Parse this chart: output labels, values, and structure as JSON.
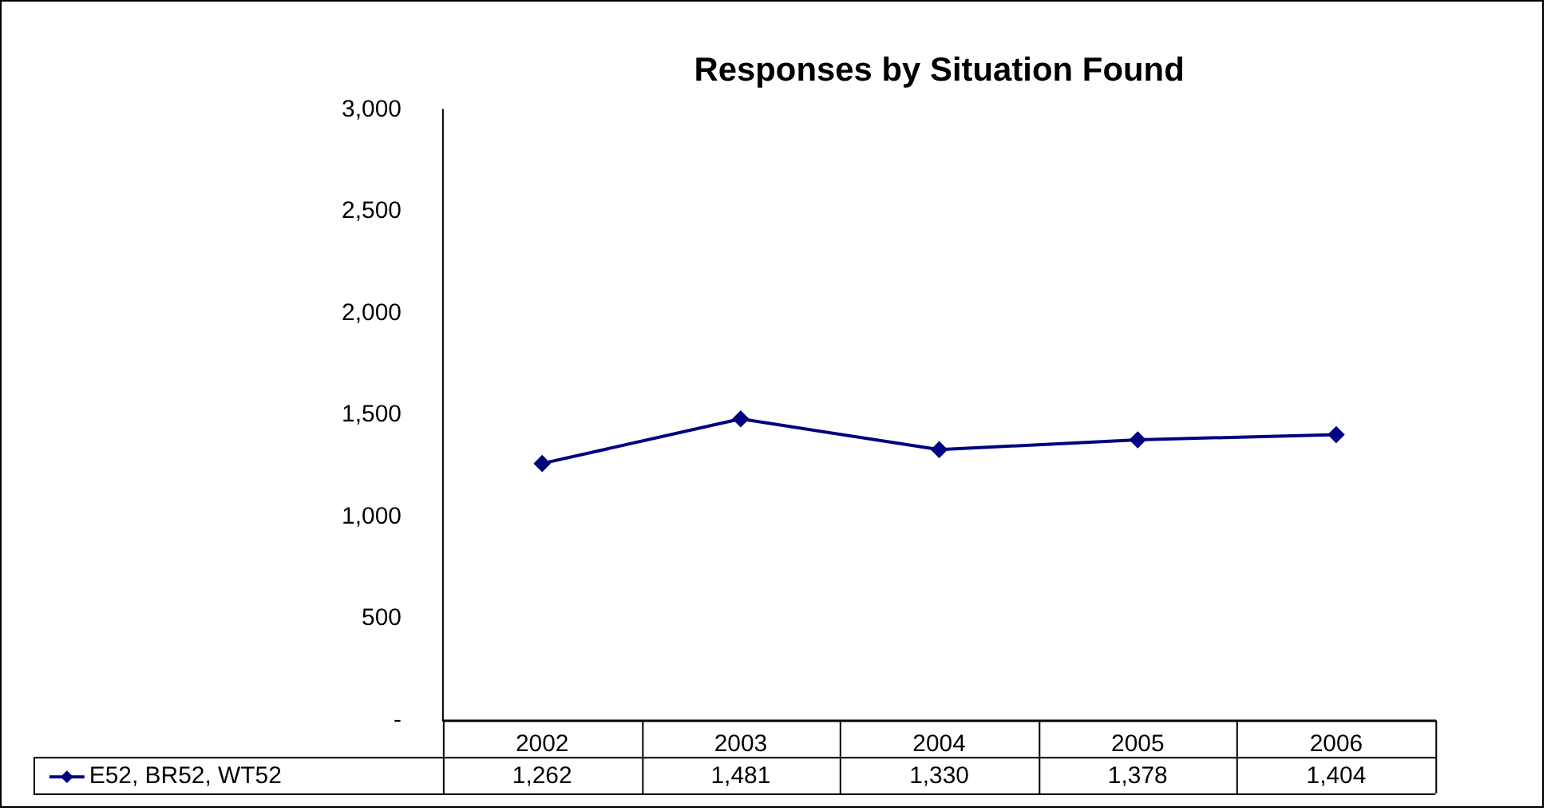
{
  "chart_data": {
    "type": "line",
    "title": "Responses by Situation Found",
    "categories": [
      "2002",
      "2003",
      "2004",
      "2005",
      "2006"
    ],
    "series": [
      {
        "name": "E52, BR52, WT52",
        "color": "#000080",
        "values": [
          1262,
          1481,
          1330,
          1378,
          1404
        ],
        "value_labels": [
          "1,262",
          "1,481",
          "1,330",
          "1,378",
          "1,404"
        ]
      }
    ],
    "ylim": [
      0,
      3000
    ],
    "yticks": [
      {
        "value": 0,
        "label": "-"
      },
      {
        "value": 500,
        "label": "500"
      },
      {
        "value": 1000,
        "label": "1,000"
      },
      {
        "value": 1500,
        "label": "1,500"
      },
      {
        "value": 2000,
        "label": "2,000"
      },
      {
        "value": 2500,
        "label": "2,500"
      },
      {
        "value": 3000,
        "label": "3,000"
      }
    ],
    "legend": "bottom",
    "grid": false,
    "marker": "diamond",
    "line_style": "solid"
  }
}
